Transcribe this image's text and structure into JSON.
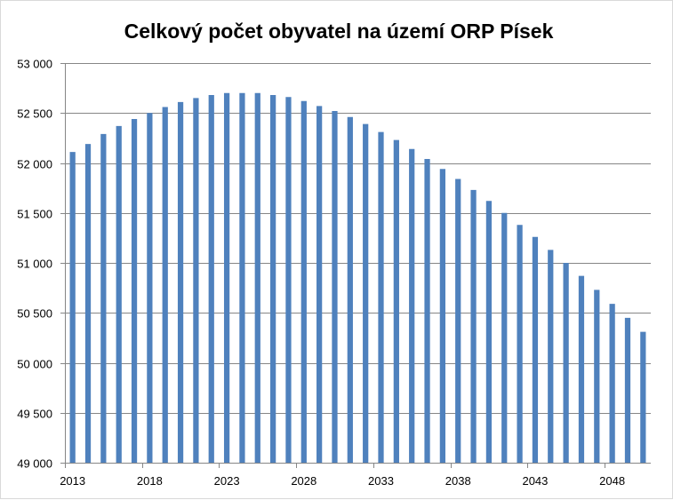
{
  "chart_data": {
    "type": "bar",
    "title": "Celkový počet obyvatel na území ORP Písek",
    "xlabel": "",
    "ylabel": "",
    "categories": [
      "2013",
      "2014",
      "2015",
      "2016",
      "2017",
      "2018",
      "2019",
      "2020",
      "2021",
      "2022",
      "2023",
      "2024",
      "2025",
      "2026",
      "2027",
      "2028",
      "2029",
      "2030",
      "2031",
      "2032",
      "2033",
      "2034",
      "2035",
      "2036",
      "2037",
      "2038",
      "2039",
      "2040",
      "2041",
      "2042",
      "2043",
      "2044",
      "2045",
      "2046",
      "2047",
      "2048",
      "2049",
      "2050"
    ],
    "x_tick_labels": [
      "2013",
      "2018",
      "2023",
      "2028",
      "2033",
      "2038",
      "2043",
      "2048"
    ],
    "y_tick_labels": [
      "49 000",
      "49 500",
      "50 000",
      "50 500",
      "51 000",
      "51 500",
      "52 000",
      "52 500",
      "53 000"
    ],
    "ylim": [
      49000,
      53000
    ],
    "y_step": 500,
    "grid": true,
    "legend": "none",
    "bar_color": "#4f81bd",
    "grid_color": "#868686",
    "values": [
      52110,
      52190,
      52290,
      52370,
      52440,
      52500,
      52560,
      52610,
      52650,
      52680,
      52700,
      52700,
      52700,
      52680,
      52660,
      52620,
      52570,
      52520,
      52460,
      52390,
      52310,
      52230,
      52140,
      52040,
      51940,
      51840,
      51730,
      51620,
      51500,
      51380,
      51260,
      51130,
      51000,
      50870,
      50730,
      50590,
      50450,
      50310
    ]
  }
}
